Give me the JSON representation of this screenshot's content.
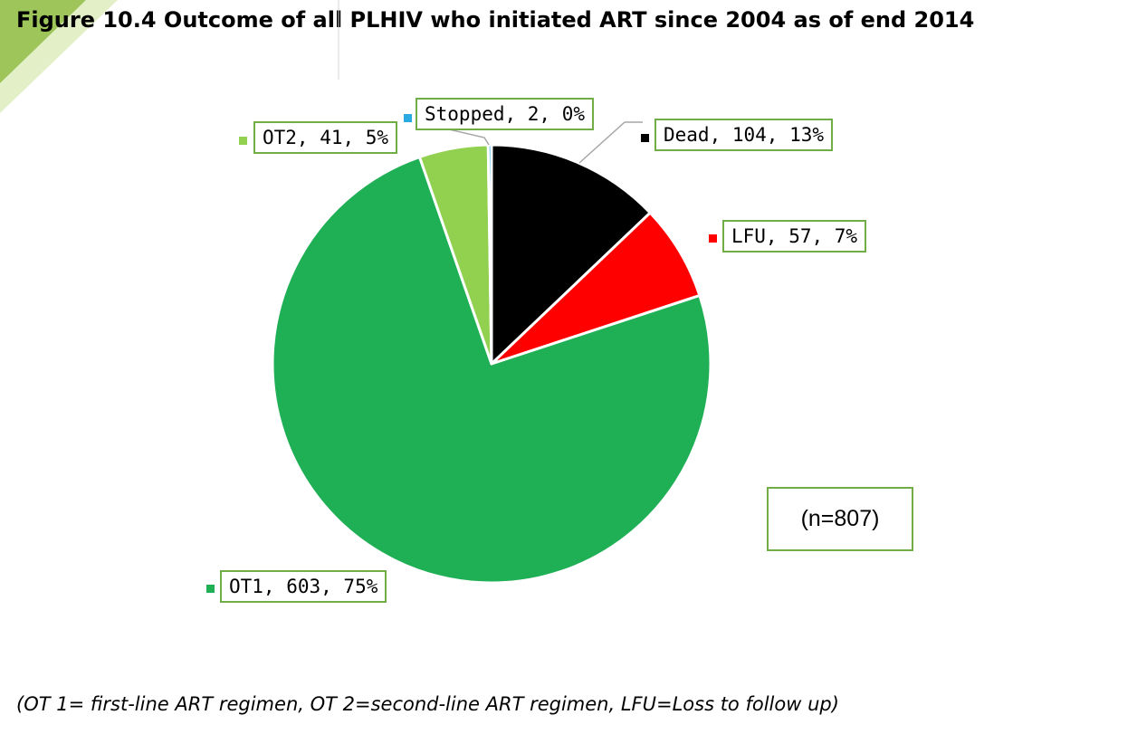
{
  "chart_data": {
    "type": "pie",
    "title": "Figure 10.4 Outcome of all PLHIV who initiated ART since 2004 as of end 2014",
    "slices": [
      {
        "label": "Dead",
        "value": 104,
        "percent": "13%",
        "color": "#000000"
      },
      {
        "label": "LFU",
        "value": 57,
        "percent": "7%",
        "color": "#ff0000"
      },
      {
        "label": "OT1",
        "value": 603,
        "percent": "75%",
        "color": "#1faf55"
      },
      {
        "label": "OT2",
        "value": 41,
        "percent": "5%",
        "color": "#92d050"
      },
      {
        "label": "Stopped",
        "value": 2,
        "percent": "0%",
        "color": "#29abe2"
      }
    ],
    "data_labels": {
      "dead": "Dead, 104, 13%",
      "lfu": "LFU, 57, 7%",
      "ot1": "OT1, 603, 75%",
      "ot2": "OT2, 41, 5%",
      "stopped": "Stopped, 2, 0%"
    },
    "annotation": "(n=807)",
    "footnote": "(OT 1= first-line ART regimen, OT 2=second-line ART regimen, LFU=Loss to follow up)"
  },
  "colors": {
    "label_border": "#70ad47",
    "deco_green": "#8dbb3d"
  }
}
